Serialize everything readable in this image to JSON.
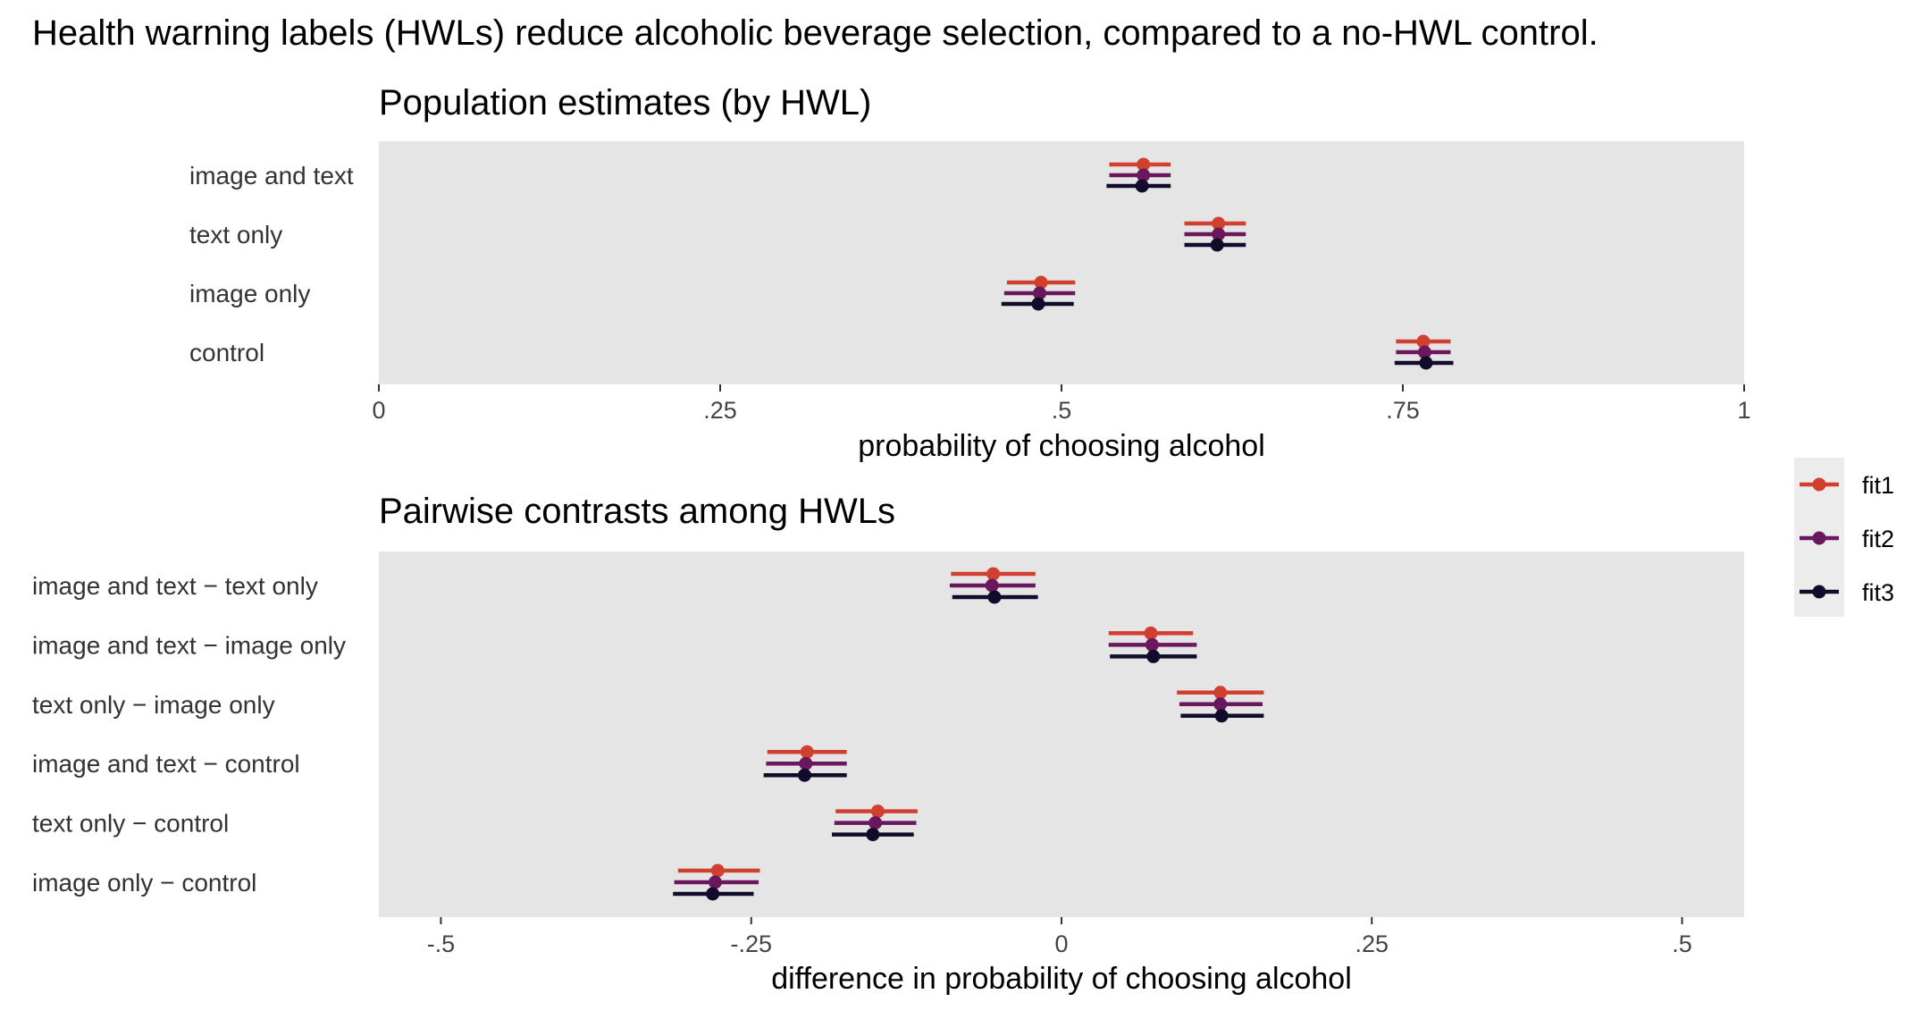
{
  "title": "Health warning labels (HWLs) reduce alcoholic beverage selection, compared to a no-HWL control.",
  "legend": {
    "items": [
      {
        "name": "fit1",
        "color": "#d1402f"
      },
      {
        "name": "fit2",
        "color": "#6b175e"
      },
      {
        "name": "fit3",
        "color": "#120c2b"
      }
    ]
  },
  "chart_data": [
    {
      "type": "scatter",
      "subtype": "point-range (forest plot)",
      "title": "Population estimates (by HWL)",
      "xlabel": "probability of choosing alcohol",
      "ylabel": "",
      "xlim": [
        0,
        1
      ],
      "xticks": [
        0,
        0.25,
        0.5,
        0.75,
        1
      ],
      "xtick_labels": [
        "0",
        ".25",
        ".5",
        ".75",
        "1"
      ],
      "grid": false,
      "legend_position": "right",
      "categories": [
        "image and text",
        "text only",
        "image only",
        "control"
      ],
      "series": [
        {
          "name": "fit1",
          "estimate": [
            0.56,
            0.615,
            0.485,
            0.765
          ],
          "lower": [
            0.535,
            0.59,
            0.46,
            0.745
          ],
          "upper": [
            0.58,
            0.635,
            0.51,
            0.785
          ]
        },
        {
          "name": "fit2",
          "estimate": [
            0.56,
            0.615,
            0.484,
            0.766
          ],
          "lower": [
            0.535,
            0.59,
            0.458,
            0.745
          ],
          "upper": [
            0.58,
            0.635,
            0.51,
            0.785
          ]
        },
        {
          "name": "fit3",
          "estimate": [
            0.559,
            0.614,
            0.483,
            0.767
          ],
          "lower": [
            0.533,
            0.59,
            0.456,
            0.744
          ],
          "upper": [
            0.58,
            0.635,
            0.509,
            0.787
          ]
        }
      ]
    },
    {
      "type": "scatter",
      "subtype": "point-range (forest plot)",
      "title": "Pairwise contrasts among HWLs",
      "xlabel": "difference in probability of choosing alcohol",
      "ylabel": "",
      "xlim": [
        -0.55,
        0.55
      ],
      "xticks": [
        -0.5,
        -0.25,
        0,
        0.25,
        0.5
      ],
      "xtick_labels": [
        "-.5",
        "-.25",
        "0",
        ".25",
        ".5"
      ],
      "grid": false,
      "legend_position": "right",
      "categories": [
        "image and text − text only",
        "image and text − image only",
        "text only − image only",
        "image and text − control",
        "text only − control",
        "image only − control"
      ],
      "series": [
        {
          "name": "fit1",
          "estimate": [
            -0.055,
            0.072,
            0.128,
            -0.205,
            -0.148,
            -0.277
          ],
          "lower": [
            -0.089,
            0.038,
            0.093,
            -0.237,
            -0.182,
            -0.309
          ],
          "upper": [
            -0.021,
            0.106,
            0.163,
            -0.173,
            -0.116,
            -0.243
          ]
        },
        {
          "name": "fit2",
          "estimate": [
            -0.056,
            0.073,
            0.128,
            -0.206,
            -0.15,
            -0.279
          ],
          "lower": [
            -0.09,
            0.038,
            0.095,
            -0.238,
            -0.183,
            -0.312
          ],
          "upper": [
            -0.021,
            0.109,
            0.162,
            -0.173,
            -0.117,
            -0.244
          ]
        },
        {
          "name": "fit3",
          "estimate": [
            -0.054,
            0.074,
            0.129,
            -0.207,
            -0.152,
            -0.281
          ],
          "lower": [
            -0.088,
            0.039,
            0.096,
            -0.24,
            -0.185,
            -0.313
          ],
          "upper": [
            -0.019,
            0.109,
            0.163,
            -0.173,
            -0.119,
            -0.248
          ]
        }
      ]
    }
  ]
}
